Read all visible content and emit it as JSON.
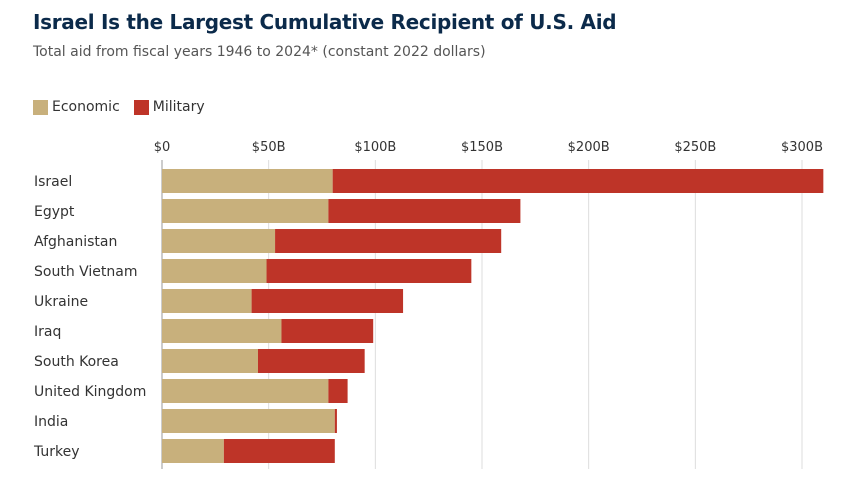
{
  "chart_data": {
    "type": "bar",
    "orientation": "horizontal",
    "stacked": true,
    "title": "Israel Is the Largest Cumulative Recipient of U.S. Aid",
    "subtitle": "Total aid from fiscal years 1946 to 2024* (constant 2022 dollars)",
    "categories": [
      "Israel",
      "Egypt",
      "Afghanistan",
      "South Vietnam",
      "Ukraine",
      "Iraq",
      "South Korea",
      "United Kingdom",
      "India",
      "Turkey"
    ],
    "series": [
      {
        "name": "Economic",
        "color": "#c8b07c",
        "values": [
          80,
          78,
          53,
          49,
          42,
          56,
          45,
          78,
          81,
          29
        ]
      },
      {
        "name": "Military",
        "color": "#be3428",
        "values": [
          230,
          90,
          106,
          96,
          71,
          43,
          50,
          9,
          1,
          52
        ]
      }
    ],
    "xlim": [
      0,
      300
    ],
    "xticks": [
      0,
      50,
      100,
      150,
      200,
      250,
      300
    ],
    "xtick_labels": [
      "$0",
      "$50B",
      "$100B",
      "$150B",
      "$200B",
      "$250B",
      "$300B"
    ],
    "grid": true,
    "legend_position": "top-left"
  }
}
